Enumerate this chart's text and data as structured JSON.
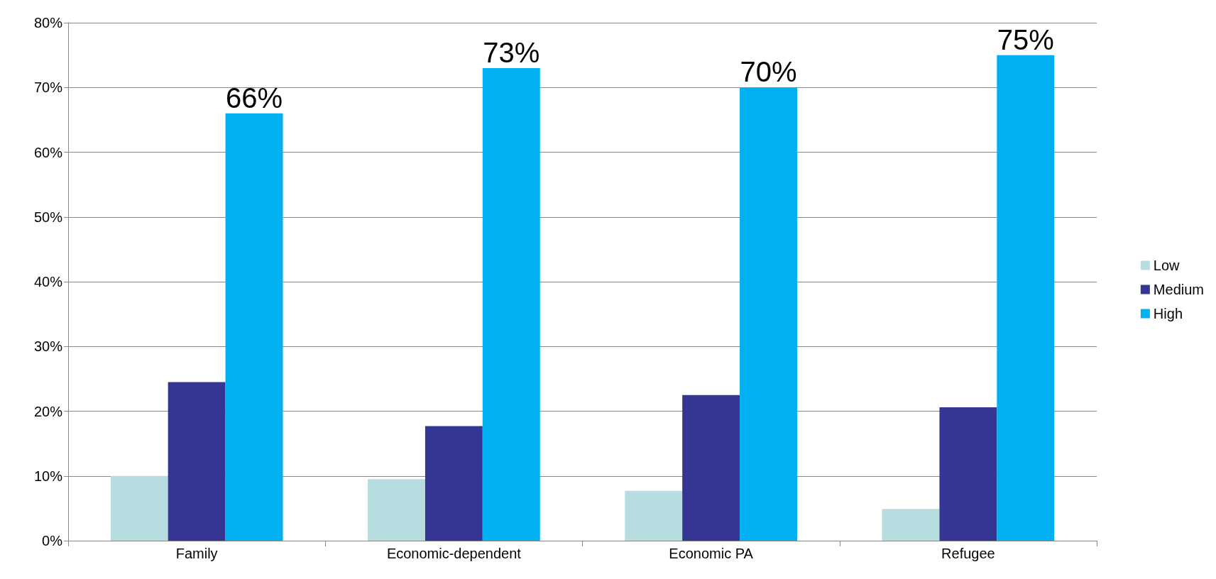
{
  "chart_data": {
    "type": "bar",
    "categories": [
      "Family",
      "Economic-dependent",
      "Economic PA",
      "Refugee"
    ],
    "series": [
      {
        "name": "Low",
        "color": "#b7dde0",
        "values": [
          10,
          9.5,
          7.7,
          4.9
        ]
      },
      {
        "name": "Medium",
        "color": "#353594",
        "values": [
          24.5,
          17.7,
          22.5,
          20.6
        ]
      },
      {
        "name": "High",
        "color": "#00b0f0",
        "values": [
          66,
          73,
          70,
          75
        ],
        "value_labels": [
          "66%",
          "73%",
          "70%",
          "75%"
        ]
      }
    ],
    "ylim": [
      0,
      80
    ],
    "yticks": [
      {
        "value": 0,
        "label": "0%"
      },
      {
        "value": 10,
        "label": "10%"
      },
      {
        "value": 20,
        "label": "20%"
      },
      {
        "value": 30,
        "label": "30%"
      },
      {
        "value": 40,
        "label": "40%"
      },
      {
        "value": 50,
        "label": "50%"
      },
      {
        "value": 60,
        "label": "60%"
      },
      {
        "value": 70,
        "label": "70%"
      },
      {
        "value": 80,
        "label": "80%"
      }
    ],
    "grid": "y",
    "legend": "right"
  }
}
